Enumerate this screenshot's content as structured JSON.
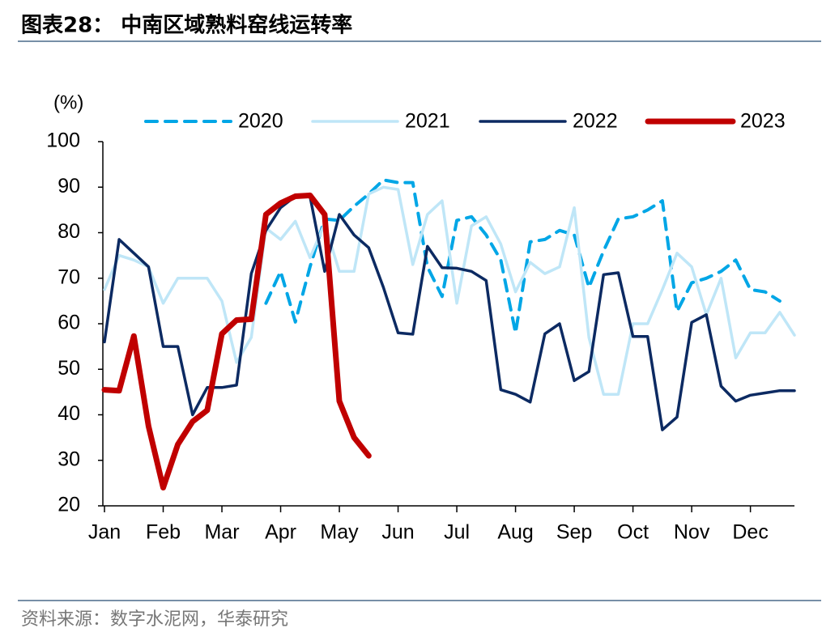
{
  "title": "图表28：  中南区域熟料窑线运转率",
  "source": "资料来源：数字水泥网，华泰研究",
  "chart_data": {
    "type": "line",
    "y_label": "(%)",
    "categories": [
      "Jan",
      null,
      null,
      null,
      "Feb",
      null,
      null,
      null,
      "Mar",
      null,
      null,
      null,
      "Apr",
      null,
      null,
      null,
      "May",
      null,
      null,
      null,
      "Jun",
      null,
      null,
      null,
      "Jul",
      null,
      null,
      null,
      "Aug",
      null,
      null,
      null,
      "Sep",
      null,
      null,
      null,
      "Oct",
      null,
      null,
      null,
      "Nov",
      null,
      null,
      null,
      "Dec",
      null,
      null,
      null
    ],
    "ylim": [
      20,
      100
    ],
    "yticks": [
      20,
      30,
      40,
      50,
      60,
      70,
      80,
      90,
      100
    ],
    "grid": false,
    "series": [
      {
        "name": "2020",
        "color": "#00a6e6",
        "line_style": "dashed",
        "values": [
          null,
          null,
          null,
          null,
          null,
          null,
          null,
          null,
          null,
          null,
          null,
          64.5,
          71.5,
          60.4,
          72.5,
          83,
          82.7,
          85.8,
          88.5,
          91.6,
          91,
          91,
          72.5,
          66,
          82.7,
          83.5,
          79.5,
          74,
          58,
          78,
          78.5,
          80.5,
          79.5,
          68,
          76,
          83,
          83.5,
          85,
          87,
          62.7,
          69,
          70,
          71.5,
          74,
          67.5,
          67,
          65,
          null
        ]
      },
      {
        "name": "2021",
        "color": "#bfe6f7",
        "line_style": "solid",
        "values": [
          67.5,
          75,
          74,
          72.5,
          64.5,
          70,
          70,
          70,
          65,
          51.5,
          57,
          81,
          78.5,
          82.5,
          74.5,
          82,
          71.5,
          71.5,
          88.5,
          90,
          89.5,
          73,
          84,
          87,
          64.5,
          81.5,
          83.5,
          77.5,
          67,
          73.5,
          71,
          72.5,
          85.5,
          57,
          44.5,
          44.5,
          60,
          60,
          67.5,
          75.5,
          72.5,
          62,
          70,
          52.5,
          58,
          58,
          62.5,
          57.5
        ]
      },
      {
        "name": "2022",
        "color": "#0c2a62",
        "line_style": "solid",
        "values": [
          56,
          78.5,
          75.5,
          72.5,
          55,
          55,
          40,
          46,
          46,
          46.5,
          71,
          80.5,
          85.5,
          88,
          88,
          71.5,
          84,
          79.5,
          76.7,
          68,
          58,
          57.7,
          77,
          72.3,
          72.2,
          71.5,
          69.5,
          45.5,
          44.5,
          42.8,
          57.8,
          60,
          47.5,
          49.5,
          70.8,
          71.2,
          57.2,
          57.2,
          36.7,
          39.5,
          60.3,
          62,
          46.3,
          43,
          44.3,
          44.8,
          45.3,
          45.3
        ]
      },
      {
        "name": "2023",
        "color": "#c00000",
        "line_style": "solid",
        "values": [
          45.5,
          45.3,
          57.3,
          37.5,
          24,
          33.5,
          38.5,
          41,
          57.8,
          60.8,
          61,
          84,
          86.5,
          88,
          88.2,
          84,
          43,
          35,
          31,
          null,
          null,
          null,
          null,
          null,
          null,
          null,
          null,
          null,
          null,
          null,
          null,
          null,
          null,
          null,
          null,
          null,
          null,
          null,
          null,
          null,
          null,
          null,
          null,
          null,
          null,
          null,
          null,
          null
        ]
      }
    ]
  }
}
